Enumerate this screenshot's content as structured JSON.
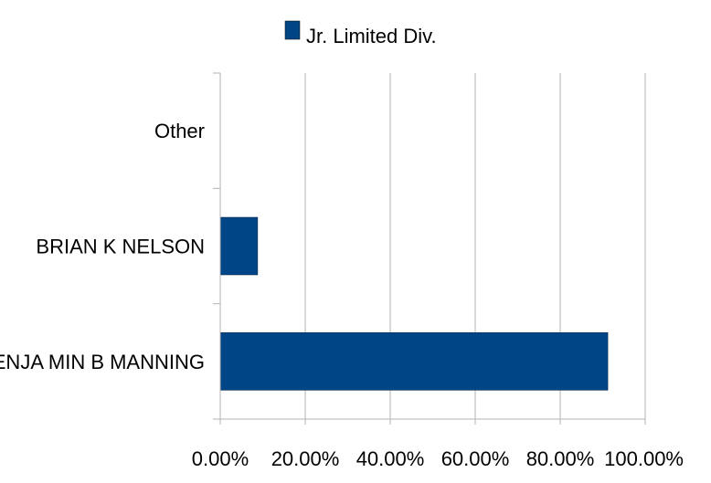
{
  "chart_data": {
    "type": "bar",
    "orientation": "horizontal",
    "categories": [
      "BENJA MIN B MANNING",
      "BRIAN K NELSON",
      "Other"
    ],
    "series": [
      {
        "name": "Jr. Limited Div.",
        "values": [
          91.2,
          8.8,
          0
        ],
        "color": "#004586"
      }
    ],
    "xlim": [
      0,
      100
    ],
    "x_ticks": [
      "0.00%",
      "20.00%",
      "40.00%",
      "60.00%",
      "80.00%",
      "100.00%"
    ],
    "grid": true,
    "legend_position": "top"
  }
}
